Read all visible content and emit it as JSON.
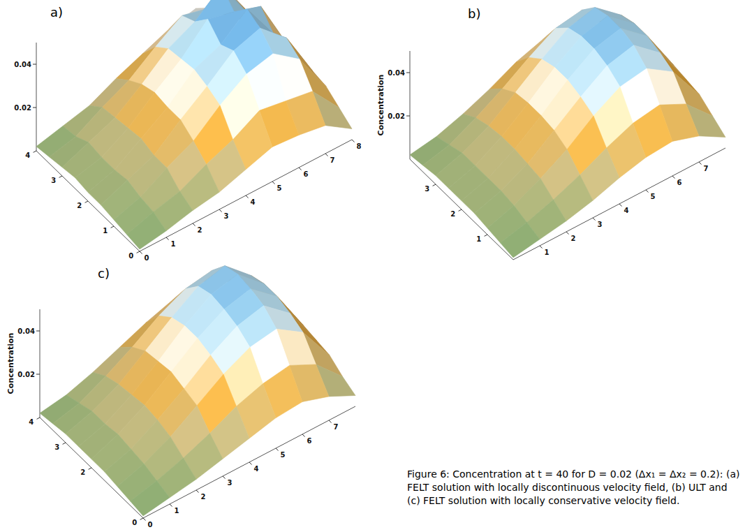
{
  "chart_data": [
    {
      "type": "surface3d",
      "title": "a)",
      "x": [
        0,
        1,
        2,
        3,
        4,
        5,
        6,
        7,
        8
      ],
      "y": [
        0,
        0.5,
        1,
        1.5,
        2,
        2.5,
        3,
        3.5,
        4
      ],
      "z": [
        [
          0.001,
          0.003,
          0.006,
          0.008,
          0.012,
          0.016,
          0.015,
          0.013,
          0.005
        ],
        [
          0.002,
          0.006,
          0.009,
          0.015,
          0.02,
          0.027,
          0.025,
          0.023,
          0.009
        ],
        [
          0.003,
          0.007,
          0.014,
          0.02,
          0.03,
          0.038,
          0.041,
          0.032,
          0.013
        ],
        [
          0.004,
          0.009,
          0.014,
          0.024,
          0.033,
          0.043,
          0.047,
          0.036,
          0.014
        ],
        [
          0.004,
          0.008,
          0.016,
          0.024,
          0.035,
          0.04,
          0.05,
          0.032,
          0.015
        ],
        [
          0.005,
          0.008,
          0.015,
          0.025,
          0.034,
          0.046,
          0.043,
          0.039,
          0.015
        ],
        [
          0.004,
          0.009,
          0.014,
          0.023,
          0.033,
          0.039,
          0.049,
          0.03,
          0.014
        ],
        [
          0.003,
          0.006,
          0.013,
          0.019,
          0.028,
          0.036,
          0.033,
          0.031,
          0.012
        ],
        [
          0.002,
          0.005,
          0.008,
          0.014,
          0.019,
          0.024,
          0.027,
          0.018,
          0.008
        ]
      ],
      "xlim": [
        0,
        8
      ],
      "ylim": [
        0,
        4
      ],
      "zlim": [
        0,
        0.05
      ],
      "xticks": [
        0,
        1,
        2,
        3,
        4,
        5,
        6,
        7,
        8
      ],
      "yticks": [
        0,
        1,
        2,
        3,
        4
      ],
      "zticks": [
        0.02,
        0.04
      ]
    },
    {
      "type": "surface3d",
      "title": "b)",
      "zlabel": "Concentration",
      "x": [
        0,
        1,
        2,
        3,
        4,
        5,
        6,
        7,
        8
      ],
      "y": [
        0,
        0.5,
        1,
        1.5,
        2,
        2.5,
        3,
        3.5,
        4
      ],
      "z": [
        [
          0.001,
          0.003,
          0.005,
          0.008,
          0.012,
          0.015,
          0.016,
          0.012,
          0.005
        ],
        [
          0.002,
          0.005,
          0.009,
          0.014,
          0.02,
          0.025,
          0.027,
          0.021,
          0.009
        ],
        [
          0.003,
          0.007,
          0.013,
          0.02,
          0.029,
          0.036,
          0.038,
          0.03,
          0.013
        ],
        [
          0.004,
          0.008,
          0.014,
          0.023,
          0.032,
          0.04,
          0.043,
          0.033,
          0.014
        ],
        [
          0.004,
          0.008,
          0.015,
          0.024,
          0.034,
          0.042,
          0.045,
          0.035,
          0.015
        ],
        [
          0.004,
          0.008,
          0.015,
          0.024,
          0.034,
          0.042,
          0.045,
          0.035,
          0.015
        ],
        [
          0.004,
          0.008,
          0.014,
          0.023,
          0.032,
          0.04,
          0.043,
          0.033,
          0.014
        ],
        [
          0.003,
          0.006,
          0.012,
          0.019,
          0.027,
          0.034,
          0.036,
          0.028,
          0.012
        ],
        [
          0.002,
          0.004,
          0.008,
          0.013,
          0.019,
          0.023,
          0.025,
          0.019,
          0.008
        ]
      ],
      "xlim": [
        0,
        8
      ],
      "ylim": [
        0,
        4
      ],
      "zlim": [
        0,
        0.05
      ],
      "xticks": [
        1,
        2,
        3,
        4,
        5,
        6,
        7
      ],
      "yticks": [
        1,
        2,
        3
      ],
      "zticks": [
        0.02,
        0.04
      ]
    },
    {
      "type": "surface3d",
      "title": "c)",
      "zlabel": "Concentration",
      "x": [
        0,
        1,
        2,
        3,
        4,
        5,
        6,
        7,
        8
      ],
      "y": [
        0,
        0.5,
        1,
        1.5,
        2,
        2.5,
        3,
        3.5,
        4
      ],
      "z": [
        [
          0.001,
          0.003,
          0.005,
          0.008,
          0.011,
          0.014,
          0.015,
          0.011,
          0.005
        ],
        [
          0.002,
          0.005,
          0.009,
          0.014,
          0.02,
          0.024,
          0.026,
          0.02,
          0.008
        ],
        [
          0.003,
          0.007,
          0.013,
          0.021,
          0.029,
          0.035,
          0.037,
          0.029,
          0.012
        ],
        [
          0.004,
          0.008,
          0.015,
          0.023,
          0.032,
          0.039,
          0.042,
          0.032,
          0.013
        ],
        [
          0.004,
          0.009,
          0.016,
          0.025,
          0.034,
          0.041,
          0.044,
          0.034,
          0.014
        ],
        [
          0.004,
          0.008,
          0.015,
          0.024,
          0.034,
          0.042,
          0.045,
          0.034,
          0.014
        ],
        [
          0.004,
          0.008,
          0.014,
          0.023,
          0.032,
          0.04,
          0.043,
          0.032,
          0.013
        ],
        [
          0.003,
          0.006,
          0.012,
          0.019,
          0.027,
          0.033,
          0.035,
          0.027,
          0.011
        ],
        [
          0.002,
          0.004,
          0.008,
          0.013,
          0.018,
          0.022,
          0.024,
          0.018,
          0.007
        ]
      ],
      "xlim": [
        0,
        8
      ],
      "ylim": [
        0,
        4
      ],
      "zlim": [
        0,
        0.05
      ],
      "xticks": [
        0,
        1,
        2,
        3,
        4,
        5,
        6,
        7
      ],
      "yticks": [
        0,
        2,
        3,
        4
      ],
      "zticks": [
        0.02,
        0.04
      ]
    }
  ],
  "caption": "Figure 6: Concentration at t = 40 for D = 0.02 (Δx₁ = Δx₂ = 0.2): (a) FELT solution with locally discontinuous velocity field, (b) ULT and (c) FELT solution with locally conservative velocity field."
}
